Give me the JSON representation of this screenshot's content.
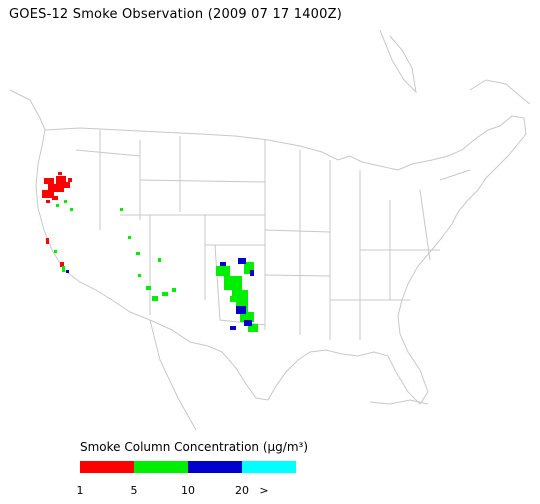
{
  "title": "GOES-12 Smoke Observation (2009 07 17  1400Z)",
  "map": {
    "region": "Contiguous United States",
    "boundary_color": "#c8c8c8",
    "smoke_regions": [
      {
        "location": "northern California / southern Oregon",
        "level": "1-5"
      },
      {
        "location": "central California coast",
        "level": "1-5 and 5-10"
      },
      {
        "location": "Nevada / Arizona",
        "level": "5-10"
      },
      {
        "location": "eastern New Mexico / west Texas",
        "level": "5-10 and 10-20"
      }
    ]
  },
  "legend": {
    "title": "Smoke Column Concentration (µg/m³)",
    "segments": [
      {
        "range": "1-5",
        "color": "#ff0000"
      },
      {
        "range": "5-10",
        "color": "#00ee00"
      },
      {
        "range": "10-20",
        "color": "#0000cc"
      },
      {
        "range": "20+",
        "color": "#00ffff"
      }
    ],
    "ticks": [
      "1",
      "5",
      "10",
      "20",
      ">"
    ]
  }
}
